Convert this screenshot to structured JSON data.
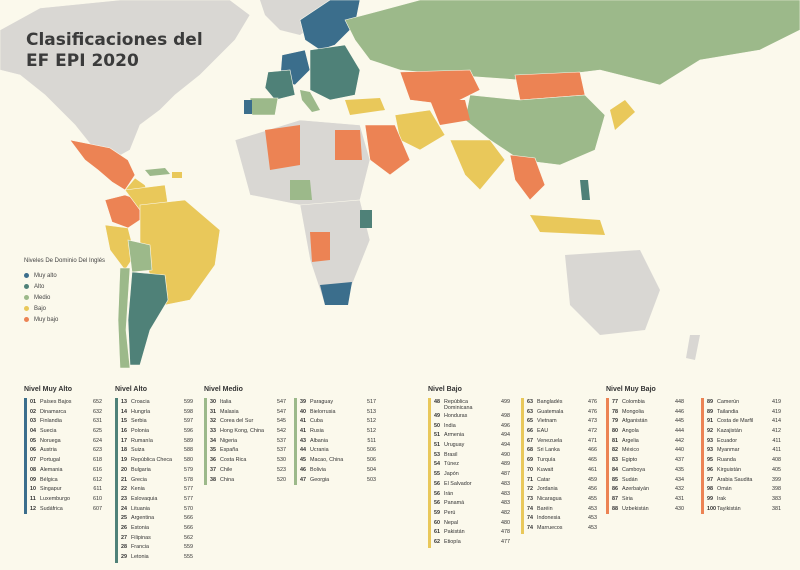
{
  "title": {
    "line1": "Clasificaciones del",
    "line2": "EF EPI 2020"
  },
  "colors": {
    "background": "#fbf9ec",
    "ocean": "#fbf9ec",
    "no_data": "#d9d7d3",
    "muy_alto": "#3b6e8c",
    "alto": "#4f8178",
    "medio": "#9cb98a",
    "bajo": "#e9c85a",
    "muy_bajo": "#ec8354"
  },
  "legend": {
    "title": "Niveles De Dominio Del Inglés",
    "items": [
      {
        "label": "Muy alto",
        "color": "#3b6e8c"
      },
      {
        "label": "Alto",
        "color": "#4f8178"
      },
      {
        "label": "Medio",
        "color": "#9cb98a"
      },
      {
        "label": "Bajo",
        "color": "#e9c85a"
      },
      {
        "label": "Muy bajo",
        "color": "#ec8354"
      }
    ]
  },
  "sections": [
    {
      "title": "Nivel Muy Alto",
      "color": "#3b6e8c",
      "columns": [
        [
          [
            "01",
            "Países Bajos",
            "652"
          ],
          [
            "02",
            "Dinamarca",
            "632"
          ],
          [
            "03",
            "Finlandia",
            "631"
          ],
          [
            "04",
            "Suecia",
            "625"
          ],
          [
            "05",
            "Noruega",
            "624"
          ],
          [
            "06",
            "Austria",
            "623"
          ],
          [
            "07",
            "Portugal",
            "618"
          ],
          [
            "08",
            "Alemania",
            "616"
          ],
          [
            "09",
            "Bélgica",
            "612"
          ],
          [
            "10",
            "Singapur",
            "611"
          ],
          [
            "11",
            "Luxemburgo",
            "610"
          ],
          [
            "12",
            "Sudáfrica",
            "607"
          ]
        ]
      ]
    },
    {
      "title": "Nivel Alto",
      "color": "#4f8178",
      "columns": [
        [
          [
            "13",
            "Croacia",
            "599"
          ],
          [
            "14",
            "Hungría",
            "598"
          ],
          [
            "15",
            "Serbia",
            "597"
          ],
          [
            "16",
            "Polonia",
            "596"
          ],
          [
            "17",
            "Rumanía",
            "589"
          ],
          [
            "18",
            "Suiza",
            "588"
          ],
          [
            "19",
            "República Checa",
            "580"
          ],
          [
            "20",
            "Bulgaria",
            "579"
          ],
          [
            "21",
            "Grecia",
            "578"
          ],
          [
            "22",
            "Kenia",
            "577"
          ],
          [
            "23",
            "Eslovaquia",
            "577"
          ],
          [
            "24",
            "Lituania",
            "570"
          ],
          [
            "25",
            "Argentina",
            "566"
          ],
          [
            "26",
            "Estonia",
            "566"
          ],
          [
            "27",
            "Filipinas",
            "562"
          ],
          [
            "28",
            "Francia",
            "559"
          ],
          [
            "29",
            "Letonia",
            "555"
          ]
        ]
      ]
    },
    {
      "title": "Nivel Medio",
      "color": "#9cb98a",
      "columns": [
        [
          [
            "30",
            "Italia",
            "547"
          ],
          [
            "31",
            "Malasia",
            "547"
          ],
          [
            "32",
            "Corea del Sur",
            "545"
          ],
          [
            "33",
            "Hong Kong, China",
            "542"
          ],
          [
            "34",
            "Nigeria",
            "537"
          ],
          [
            "35",
            "España",
            "537"
          ],
          [
            "36",
            "Costa Rica",
            "530"
          ],
          [
            "37",
            "Chile",
            "523"
          ],
          [
            "38",
            "China",
            "520"
          ]
        ],
        [
          [
            "39",
            "Paraguay",
            "517"
          ],
          [
            "40",
            "Bielorrusia",
            "513"
          ],
          [
            "41",
            "Cuba",
            "512"
          ],
          [
            "41",
            "Rusia",
            "512"
          ],
          [
            "43",
            "Albania",
            "511"
          ],
          [
            "44",
            "Ucrania",
            "506"
          ],
          [
            "45",
            "Macao, China",
            "506"
          ],
          [
            "46",
            "Bolivia",
            "504"
          ],
          [
            "47",
            "Georgia",
            "503"
          ]
        ]
      ]
    },
    {
      "title": "Nivel Bajo",
      "color": "#e9c85a",
      "columns": [
        [
          [
            "48",
            "República Dominicana",
            "499"
          ],
          [
            "49",
            "Honduras",
            "498"
          ],
          [
            "50",
            "India",
            "496"
          ],
          [
            "51",
            "Armenia",
            "494"
          ],
          [
            "51",
            "Uruguay",
            "494"
          ],
          [
            "53",
            "Brasil",
            "490"
          ],
          [
            "54",
            "Túnez",
            "489"
          ],
          [
            "55",
            "Japón",
            "487"
          ],
          [
            "56",
            "El Salvador",
            "483"
          ],
          [
            "56",
            "Irán",
            "483"
          ],
          [
            "56",
            "Panamá",
            "483"
          ],
          [
            "59",
            "Perú",
            "482"
          ],
          [
            "60",
            "Nepal",
            "480"
          ],
          [
            "61",
            "Pakistán",
            "478"
          ],
          [
            "62",
            "Etiopía",
            "477"
          ]
        ],
        [
          [
            "63",
            "Bangladés",
            "476"
          ],
          [
            "63",
            "Guatemala",
            "476"
          ],
          [
            "65",
            "Vietnam",
            "473"
          ],
          [
            "66",
            "EAU",
            "472"
          ],
          [
            "67",
            "Venezuela",
            "471"
          ],
          [
            "68",
            "Sri Lanka",
            "466"
          ],
          [
            "69",
            "Turquía",
            "465"
          ],
          [
            "70",
            "Kuwait",
            "461"
          ],
          [
            "71",
            "Catar",
            "459"
          ],
          [
            "72",
            "Jordania",
            "456"
          ],
          [
            "73",
            "Nicaragua",
            "455"
          ],
          [
            "74",
            "Baréin",
            "453"
          ],
          [
            "74",
            "Indonesia",
            "453"
          ],
          [
            "74",
            "Marruecos",
            "453"
          ]
        ]
      ]
    },
    {
      "title": "Nivel Muy Bajo",
      "color": "#ec8354",
      "columns": [
        [
          [
            "77",
            "Colombia",
            "448"
          ],
          [
            "78",
            "Mongolia",
            "446"
          ],
          [
            "79",
            "Afganistán",
            "445"
          ],
          [
            "80",
            "Angola",
            "444"
          ],
          [
            "81",
            "Argelia",
            "442"
          ],
          [
            "82",
            "México",
            "440"
          ],
          [
            "83",
            "Egipto",
            "437"
          ],
          [
            "84",
            "Camboya",
            "435"
          ],
          [
            "85",
            "Sudán",
            "434"
          ],
          [
            "86",
            "Azerbaiyán",
            "432"
          ],
          [
            "87",
            "Siria",
            "431"
          ],
          [
            "88",
            "Uzbekistán",
            "430"
          ]
        ],
        [
          [
            "89",
            "Camerún",
            "419"
          ],
          [
            "89",
            "Tailandia",
            "419"
          ],
          [
            "91",
            "Costa de Marfil",
            "414"
          ],
          [
            "92",
            "Kazajistán",
            "412"
          ],
          [
            "93",
            "Ecuador",
            "411"
          ],
          [
            "93",
            "Myanmar",
            "411"
          ],
          [
            "95",
            "Ruanda",
            "408"
          ],
          [
            "96",
            "Kirguistán",
            "405"
          ],
          [
            "97",
            "Arabia Saudita",
            "399"
          ],
          [
            "98",
            "Omán",
            "398"
          ],
          [
            "99",
            "Irak",
            "383"
          ],
          [
            "100",
            "Tayikistán",
            "381"
          ]
        ]
      ]
    }
  ]
}
